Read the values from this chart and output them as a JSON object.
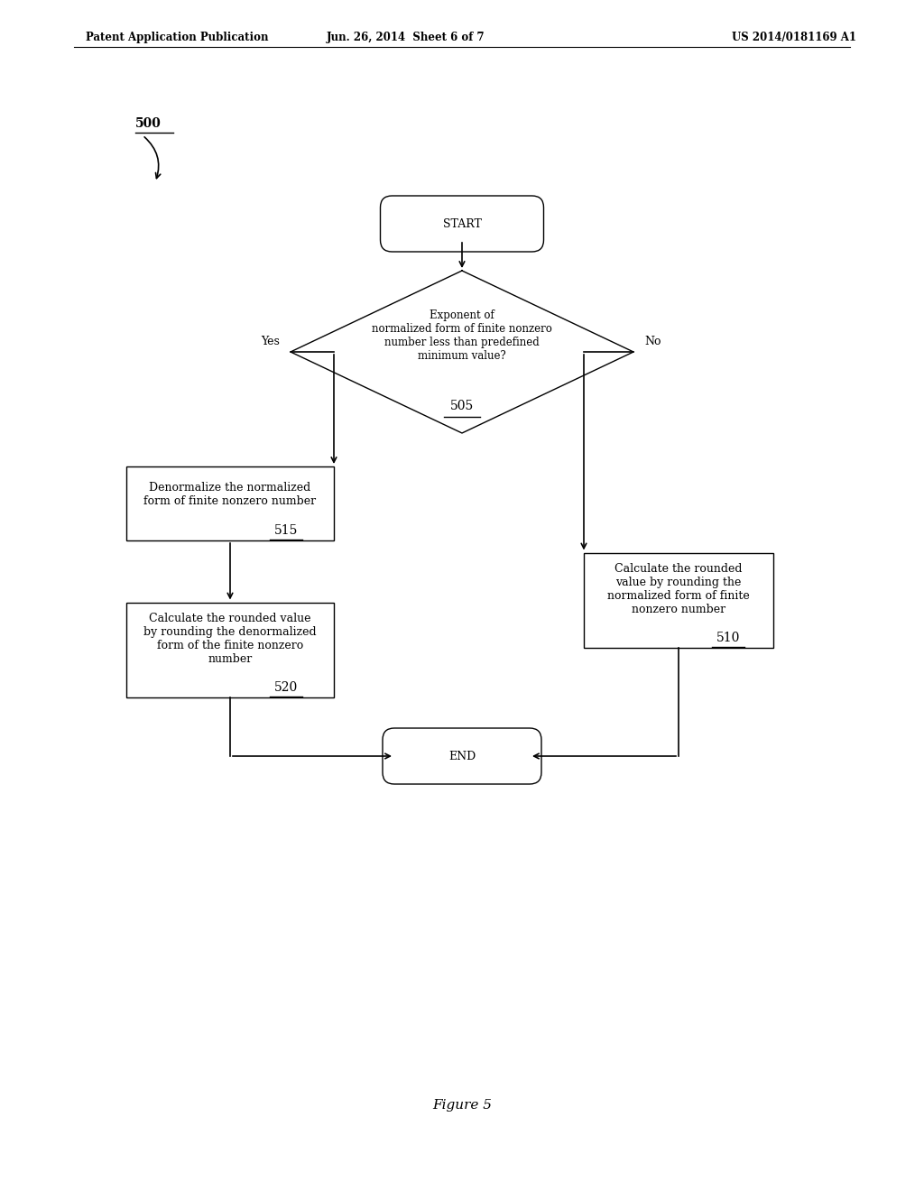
{
  "header_left": "Patent Application Publication",
  "header_mid": "Jun. 26, 2014  Sheet 6 of 7",
  "header_right": "US 2014/0181169 A1",
  "fig_label": "Figure 5",
  "fig_num_label": "500",
  "start_text": "START",
  "end_text": "END",
  "diamond_text": "Exponent of\nnormalized form of finite nonzero\nnumber less than predefined\nminimum value?",
  "diamond_label": "505",
  "box515_text": "Denormalize the normalized\nform of finite nonzero number",
  "box515_label": "515",
  "box520_text": "Calculate the rounded value\nby rounding the denormalized\nform of the finite nonzero\nnumber",
  "box520_label": "520",
  "box510_text": "Calculate the rounded\nvalue by rounding the\nnormalized form of finite\nnonzero number",
  "box510_label": "510",
  "yes_label": "Yes",
  "no_label": "No",
  "bg_color": "#ffffff",
  "box_edge_color": "#000000",
  "arrow_color": "#000000",
  "text_color": "#000000",
  "font_size": 9,
  "label_font_size": 10
}
